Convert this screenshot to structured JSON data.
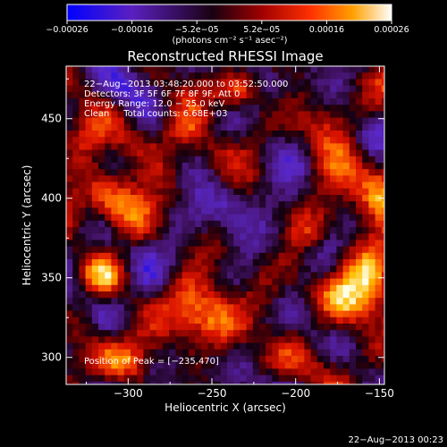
{
  "chart_data": {
    "type": "heatmap",
    "title": "Reconstructed RHESSI Image",
    "xlabel": "Heliocentric X (arcsec)",
    "ylabel": "Heliocentric Y (arcsec)",
    "xlim": [
      -337,
      -147
    ],
    "ylim": [
      283,
      483
    ],
    "xticks": [
      -300,
      -250,
      -200,
      -150
    ],
    "xtick_labels": [
      "−300",
      "−250",
      "−200",
      "−150"
    ],
    "yticks": [
      300,
      350,
      400,
      450
    ],
    "ytick_labels": [
      "300",
      "350",
      "400",
      "450"
    ],
    "colorbar": {
      "label": "(photons cm⁻² s⁻¹ asec⁻²)",
      "range": [
        -0.00026,
        0.00026
      ],
      "tick_labels": [
        "−0.00026",
        "−0.00016",
        "−5.2e−05",
        "5.2e−05",
        "0.00016",
        "0.00026"
      ],
      "colors": [
        "#0000ff",
        "#6a1fb0",
        "#1a0010",
        "#a00000",
        "#ff3000",
        "#ffa000",
        "#ffffff"
      ]
    },
    "annotations": [
      "22−Aug−2013 03:48:20.000 to 03:52:50.000",
      "Detectors: 3F 5F 6F 7F 8F 9F, Att 0",
      "Energy Range: 12.0 − 25.0 keV",
      "Clean     Total counts: 6.68E+03"
    ],
    "peak_label": "Position of Peak = [−235,470]",
    "peak": [
      -235,
      470
    ]
  },
  "footer_timestamp": "22−Aug−2013 00:23"
}
